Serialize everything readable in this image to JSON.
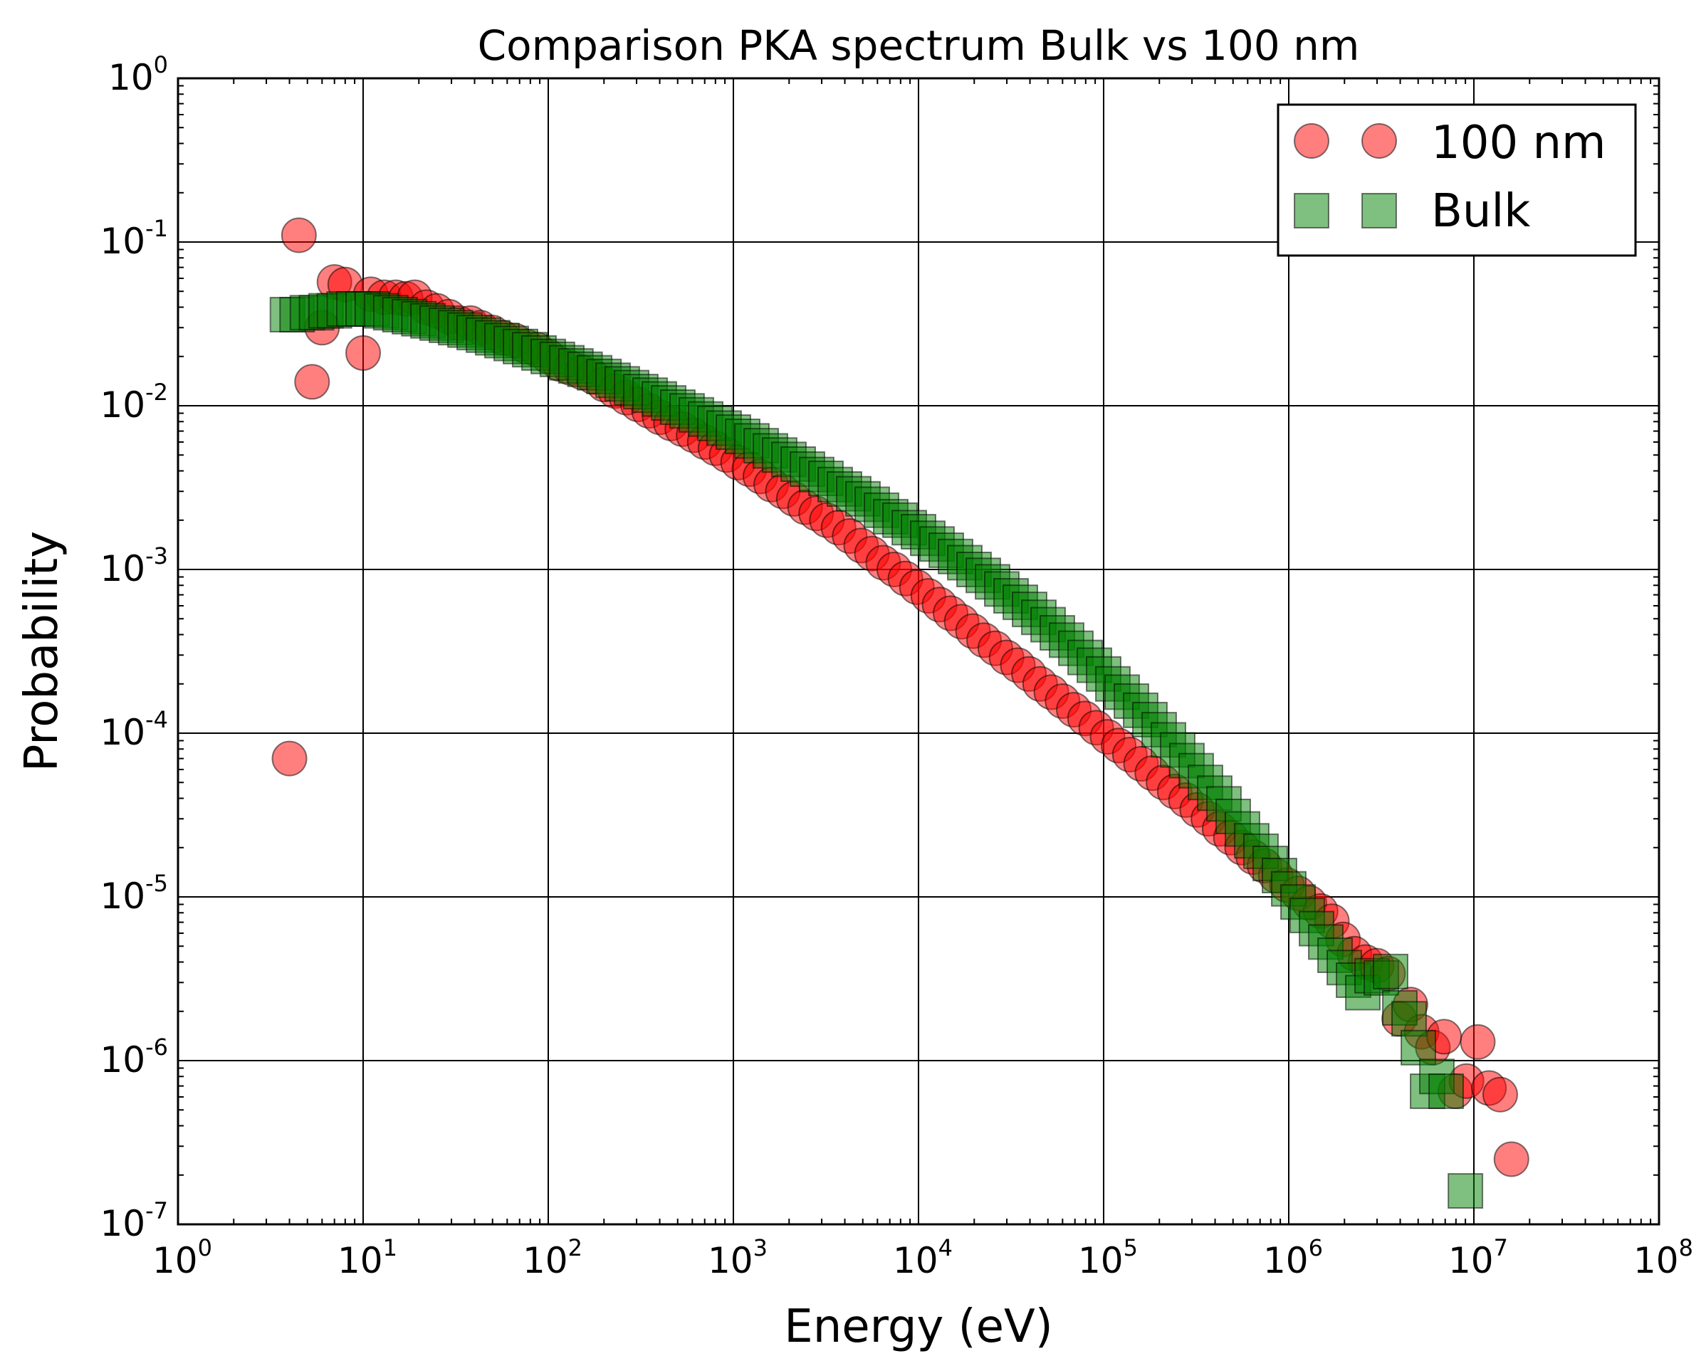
{
  "chart_data": {
    "type": "scatter",
    "title": "Comparison PKA spectrum Bulk vs 100 nm",
    "xlabel": "Energy (eV)",
    "ylabel": "Probability",
    "xscale": "log",
    "yscale": "log",
    "xlim": [
      1,
      100000000
    ],
    "ylim": [
      1e-07,
      1
    ],
    "grid": true,
    "legend_position": "top-right",
    "x_ticks": [
      {
        "base": "10",
        "exp": "0",
        "value": 1
      },
      {
        "base": "10",
        "exp": "1",
        "value": 10
      },
      {
        "base": "10",
        "exp": "2",
        "value": 100
      },
      {
        "base": "10",
        "exp": "3",
        "value": 1000
      },
      {
        "base": "10",
        "exp": "4",
        "value": 10000
      },
      {
        "base": "10",
        "exp": "5",
        "value": 100000
      },
      {
        "base": "10",
        "exp": "6",
        "value": 1000000
      },
      {
        "base": "10",
        "exp": "7",
        "value": 10000000
      },
      {
        "base": "10",
        "exp": "8",
        "value": 100000000
      }
    ],
    "y_ticks": [
      {
        "base": "10",
        "exp": "0",
        "value": 1
      },
      {
        "base": "10",
        "exp": "-1",
        "value": 0.1
      },
      {
        "base": "10",
        "exp": "-2",
        "value": 0.01
      },
      {
        "base": "10",
        "exp": "-3",
        "value": 0.001
      },
      {
        "base": "10",
        "exp": "-4",
        "value": 0.0001
      },
      {
        "base": "10",
        "exp": "-5",
        "value": 1e-05
      },
      {
        "base": "10",
        "exp": "-6",
        "value": 1e-06
      },
      {
        "base": "10",
        "exp": "-7",
        "value": 1e-07
      }
    ],
    "series": [
      {
        "name": "100 nm",
        "marker": "circle",
        "color": "#ff0000",
        "alpha": 0.5,
        "x": [
          4,
          4.5,
          5.3,
          6,
          7,
          8,
          10,
          11,
          13,
          15,
          17,
          19,
          22,
          25,
          29,
          33,
          38,
          43,
          50,
          57,
          66,
          76,
          87,
          100,
          115,
          132,
          152,
          175,
          200,
          230,
          265,
          305,
          350,
          400,
          460,
          530,
          610,
          700,
          800,
          920,
          1060,
          1220,
          1400,
          1600,
          1850,
          2120,
          2440,
          2800,
          3200,
          3700,
          4250,
          4900,
          5600,
          6450,
          7400,
          8500,
          9800,
          11300,
          13000,
          14900,
          17100,
          19700,
          22600,
          26000,
          29900,
          34400,
          39500,
          45400,
          52200,
          60000,
          69000,
          79300,
          91200,
          105000,
          120500,
          138600,
          159300,
          183200,
          210700,
          242200,
          278500,
          320200,
          368200,
          423300,
          486700,
          559600,
          643500,
          739900,
          850800,
          978200,
          1124700,
          1293200,
          1486900,
          1709700,
          1965800,
          2260300,
          2598800,
          2988100,
          3435700,
          3950400,
          4542100,
          5222500,
          6004800,
          6904200,
          7938500,
          9127600,
          10495000,
          12067000,
          13875000,
          15953000
        ],
        "y": [
          7e-05,
          0.11,
          0.014,
          0.03,
          0.057,
          0.055,
          0.021,
          0.048,
          0.046,
          0.046,
          0.045,
          0.046,
          0.04,
          0.038,
          0.035,
          0.032,
          0.032,
          0.03,
          0.028,
          0.026,
          0.025,
          0.023,
          0.022,
          0.02,
          0.018,
          0.017,
          0.016,
          0.015,
          0.0135,
          0.0123,
          0.0112,
          0.0102,
          0.0093,
          0.0085,
          0.0078,
          0.0072,
          0.0066,
          0.006,
          0.0055,
          0.005,
          0.0045,
          0.0041,
          0.0037,
          0.0033,
          0.003,
          0.0027,
          0.0024,
          0.0022,
          0.002,
          0.0018,
          0.0016,
          0.0014,
          0.00125,
          0.0011,
          0.001,
          0.00088,
          0.00078,
          0.00069,
          0.00061,
          0.00054,
          0.00048,
          0.00042,
          0.00037,
          0.00033,
          0.00029,
          0.00026,
          0.00023,
          0.0002,
          0.000178,
          0.000157,
          0.000139,
          0.000123,
          0.000108,
          9.5e-05,
          8.4e-05,
          7.4e-05,
          6.5e-05,
          5.7e-05,
          5e-05,
          4.4e-05,
          3.9e-05,
          3.4e-05,
          3e-05,
          2.6e-05,
          2.3e-05,
          2e-05,
          1.75e-05,
          1.55e-05,
          1.35e-05,
          1.18e-05,
          1.05e-05,
          9.2e-06,
          8.2e-06,
          7.1e-06,
          5.5e-06,
          4.5e-06,
          4e-06,
          3.8e-06,
          3.4e-06,
          1.8e-06,
          2.2e-06,
          1.5e-06,
          1.2e-06,
          1.4e-06,
          6.5e-07,
          7.5e-07,
          1.3e-06,
          6.8e-07,
          6.2e-07,
          2.5e-07
        ]
      },
      {
        "name": "Bulk",
        "marker": "square",
        "color": "#008000",
        "alpha": 0.5,
        "x": [
          3.9,
          4.4,
          5,
          5.6,
          6.3,
          7,
          7.9,
          8.9,
          10,
          11.2,
          12.6,
          14.1,
          15.8,
          17.8,
          20,
          22.4,
          25.1,
          28.2,
          31.6,
          35.5,
          39.8,
          44.7,
          50.1,
          56.2,
          63.1,
          70.8,
          79.4,
          89.1,
          100,
          112,
          126,
          141,
          158,
          178,
          200,
          224,
          251,
          282,
          316,
          355,
          398,
          447,
          501,
          562,
          631,
          708,
          794,
          891,
          1000,
          1122,
          1259,
          1413,
          1585,
          1778,
          1995,
          2239,
          2512,
          2818,
          3162,
          3548,
          3981,
          4467,
          5012,
          5623,
          6310,
          7079,
          7943,
          8913,
          10000,
          11220,
          12589,
          14125,
          15849,
          17783,
          19953,
          22387,
          25119,
          28184,
          31623,
          35481,
          39811,
          44668,
          50119,
          56234,
          63096,
          70795,
          79433,
          89125,
          100000,
          112202,
          125893,
          141254,
          158489,
          177828,
          199526,
          223872,
          251189,
          281838,
          316228,
          354813,
          398107,
          446684,
          501187,
          562341,
          630957,
          707946,
          794328,
          891251,
          1000000,
          1122018,
          1258925,
          1412538,
          1584893,
          1778279,
          1995262,
          2238721,
          2511886,
          2818383,
          3162278,
          3548134,
          3981072,
          4466836,
          5011872,
          5623413,
          6309573,
          7079458,
          9000000
        ],
        "y": [
          0.036,
          0.036,
          0.037,
          0.037,
          0.038,
          0.038,
          0.039,
          0.039,
          0.039,
          0.039,
          0.038,
          0.037,
          0.036,
          0.035,
          0.034,
          0.033,
          0.032,
          0.031,
          0.03,
          0.029,
          0.028,
          0.027,
          0.026,
          0.025,
          0.024,
          0.023,
          0.022,
          0.021,
          0.02,
          0.0192,
          0.0183,
          0.0175,
          0.0167,
          0.0159,
          0.0151,
          0.0143,
          0.0136,
          0.0129,
          0.0122,
          0.0116,
          0.011,
          0.0104,
          0.0098,
          0.0093,
          0.0088,
          0.0083,
          0.0078,
          0.0073,
          0.0069,
          0.0065,
          0.0061,
          0.0057,
          0.0053,
          0.005,
          0.0047,
          0.0044,
          0.0041,
          0.0038,
          0.0036,
          0.0033,
          0.0031,
          0.0029,
          0.0027,
          0.0025,
          0.0023,
          0.0021,
          0.002,
          0.0018,
          0.0017,
          0.00155,
          0.00143,
          0.00131,
          0.0012,
          0.0011,
          0.001,
          0.00092,
          0.00084,
          0.00076,
          0.00069,
          0.00063,
          0.00057,
          0.00051,
          0.00046,
          0.00041,
          0.00037,
          0.00033,
          0.00029,
          0.00026,
          0.00023,
          0.0002,
          0.000178,
          0.000157,
          0.000138,
          0.000121,
          0.000105,
          9.1e-05,
          7.9e-05,
          6.8e-05,
          5.9e-05,
          5e-05,
          4.3e-05,
          3.7e-05,
          3.1e-05,
          2.6e-05,
          2.2e-05,
          1.9e-05,
          1.6e-05,
          1.35e-05,
          1.12e-05,
          9.3e-06,
          7.7e-06,
          6.4e-06,
          5.3e-06,
          4.4e-06,
          3.7e-06,
          3.1e-06,
          2.6e-06,
          3.3e-06,
          3.2e-06,
          3.5e-06,
          2.1e-06,
          1.8e-06,
          1.2e-06,
          6.5e-07,
          8e-07,
          6.5e-07,
          1.6e-07
        ]
      }
    ]
  }
}
